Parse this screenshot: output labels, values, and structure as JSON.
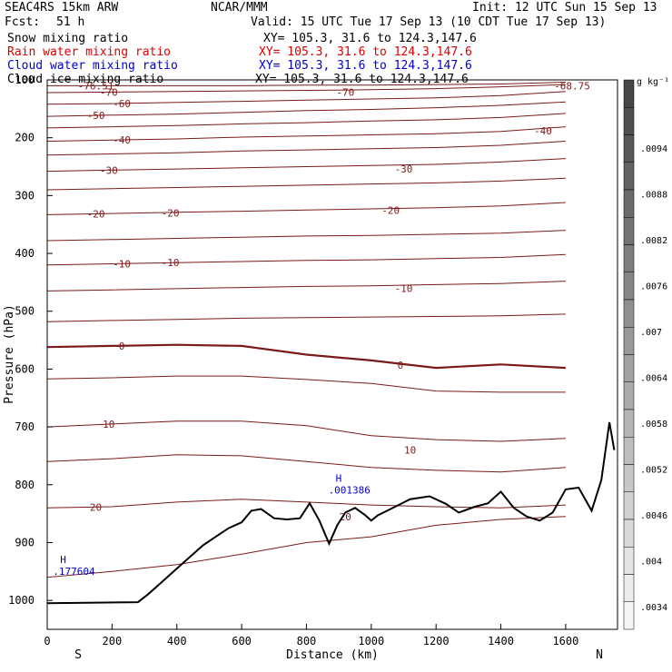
{
  "header": {
    "model": "SEAC4RS 15km ARW",
    "org": "NCAR/MMM",
    "init": "Init: 12 UTC Sun 15 Sep 13",
    "fcst_label": "Fcst:",
    "fcst_value": "51 h",
    "valid": "Valid: 15 UTC Tue 17 Sep 13 (10 CDT Tue 17 Sep 13)"
  },
  "fields": [
    {
      "name": "Snow mixing ratio",
      "xy": "XY= 105.3, 31.6 to 124.3,147.6",
      "color": "#000000"
    },
    {
      "name": "Rain water mixing ratio",
      "xy": "XY= 105.3, 31.6 to 124.3,147.6",
      "color": "#dd0000"
    },
    {
      "name": "Cloud water mixing ratio",
      "xy": "XY= 105.3, 31.6 to 124.3,147.6",
      "color": "#0000cc"
    },
    {
      "name": "Cloud ice mixing ratio",
      "xy": "XY= 105.3, 31.6 to 124.3,147.6",
      "color": "#000000"
    }
  ],
  "chart_data": {
    "type": "line",
    "xlabel": "Distance (km)",
    "ylabel": "Pressure (hPa)",
    "xlim": [
      0,
      1760
    ],
    "ylim": [
      1050,
      100
    ],
    "x_ticks": [
      0,
      200,
      400,
      600,
      800,
      1000,
      1200,
      1400,
      1600
    ],
    "y_ticks": [
      100,
      200,
      300,
      400,
      500,
      600,
      700,
      800,
      900,
      1000
    ],
    "endpoints": {
      "left": "S",
      "right": "N"
    },
    "contour_color": "#7b1a1a",
    "terrain_color": "#000000",
    "terrain": {
      "x": [
        0,
        280,
        310,
        350,
        400,
        440,
        480,
        520,
        560,
        600,
        630,
        660,
        700,
        740,
        780,
        810,
        840,
        870,
        895,
        920,
        950,
        980,
        1000,
        1020,
        1060,
        1120,
        1180,
        1230,
        1270,
        1320,
        1360,
        1400,
        1440,
        1480,
        1520,
        1560,
        1600,
        1640,
        1680,
        1710,
        1735,
        1750
      ],
      "p": [
        1005,
        1003,
        990,
        970,
        945,
        925,
        905,
        890,
        875,
        865,
        845,
        842,
        858,
        860,
        858,
        832,
        862,
        902,
        870,
        848,
        840,
        852,
        862,
        853,
        842,
        825,
        820,
        833,
        848,
        838,
        832,
        812,
        840,
        855,
        862,
        848,
        808,
        805,
        845,
        792,
        692,
        740
      ]
    },
    "series": [
      {
        "label": "-76.51",
        "p": [
          110,
          110,
          110,
          110,
          109,
          109,
          108,
          107,
          104
        ]
      },
      {
        "label": "-70",
        "p": [
          122,
          121,
          120,
          119,
          118,
          117,
          115,
          112,
          108
        ]
      },
      {
        "label": "-60",
        "p": [
          142,
          141,
          139,
          137,
          135,
          133,
          131,
          127,
          120
        ]
      },
      {
        "label": "-50",
        "p": [
          163,
          161,
          159,
          156,
          153,
          151,
          148,
          144,
          138
        ]
      },
      {
        "label": "",
        "p": [
          183,
          181,
          179,
          176,
          174,
          171,
          169,
          165,
          158
        ]
      },
      {
        "label": "-40",
        "p": [
          206,
          204,
          202,
          199,
          197,
          195,
          193,
          189,
          181
        ]
      },
      {
        "label": "",
        "p": [
          230,
          228,
          226,
          223,
          221,
          219,
          217,
          213,
          206
        ]
      },
      {
        "label": "-30",
        "p": [
          258,
          256,
          254,
          252,
          250,
          248,
          246,
          242,
          236
        ]
      },
      {
        "label": "",
        "p": [
          290,
          288,
          286,
          284,
          282,
          280,
          278,
          275,
          270
        ]
      },
      {
        "label": "-20",
        "p": [
          333,
          331,
          329,
          327,
          325,
          323,
          321,
          318,
          312
        ]
      },
      {
        "label": "",
        "p": [
          378,
          376,
          374,
          372,
          370,
          369,
          367,
          365,
          360
        ]
      },
      {
        "label": "-10",
        "p": [
          420,
          418,
          416,
          414,
          412,
          411,
          409,
          407,
          402
        ]
      },
      {
        "label": "",
        "p": [
          465,
          463,
          461,
          459,
          457,
          456,
          454,
          452,
          448
        ]
      },
      {
        "label": "",
        "p": [
          518,
          516,
          514,
          512,
          511,
          510,
          509,
          508,
          505
        ]
      },
      {
        "label": "0",
        "p": [
          562,
          560,
          558,
          560,
          575,
          585,
          598,
          592,
          598
        ]
      },
      {
        "label": "",
        "p": [
          617,
          615,
          612,
          612,
          618,
          625,
          638,
          640,
          640
        ]
      },
      {
        "label": "10",
        "p": [
          700,
          695,
          690,
          690,
          698,
          715,
          722,
          725,
          720
        ]
      },
      {
        "label": "",
        "p": [
          760,
          755,
          748,
          750,
          760,
          770,
          775,
          778,
          770
        ]
      },
      {
        "label": "20",
        "p": [
          840,
          838,
          830,
          825,
          830,
          835,
          838,
          840,
          835
        ]
      },
      {
        "label": "",
        "p": [
          960,
          950,
          938,
          920,
          900,
          890,
          870,
          860,
          855
        ]
      }
    ],
    "series_x": [
      0,
      200,
      400,
      600,
      800,
      1000,
      1200,
      1400,
      1600
    ],
    "extra_labels": [
      {
        "text": "-70",
        "x": 920,
        "p": 121
      },
      {
        "text": "-68.75",
        "x": 1620,
        "p": 110
      },
      {
        "text": "-40",
        "x": 1530,
        "p": 188
      },
      {
        "text": "-30",
        "x": 1100,
        "p": 254
      },
      {
        "text": "-20",
        "x": 380,
        "p": 330
      },
      {
        "text": "-20",
        "x": 1060,
        "p": 325
      },
      {
        "text": "-10",
        "x": 380,
        "p": 416
      },
      {
        "text": "-10",
        "x": 1100,
        "p": 460
      },
      {
        "text": "0",
        "x": 1090,
        "p": 593
      },
      {
        "text": "10",
        "x": 1120,
        "p": 740
      },
      {
        "text": "20",
        "x": 920,
        "p": 855
      }
    ],
    "cloud_water": {
      "maxima": [
        {
          "text": "H",
          "value": ".177604",
          "x": 40,
          "p": 935
        },
        {
          "text": "H",
          "value": ".001386",
          "x": 890,
          "p": 795
        }
      ]
    },
    "colorbar": {
      "unit": "g kg⁻¹",
      "labels": [
        ".0094",
        ".0088",
        ".0082",
        ".0076",
        ".007",
        ".0064",
        ".0058",
        ".0052",
        ".0046",
        ".004",
        ".0034"
      ]
    }
  }
}
